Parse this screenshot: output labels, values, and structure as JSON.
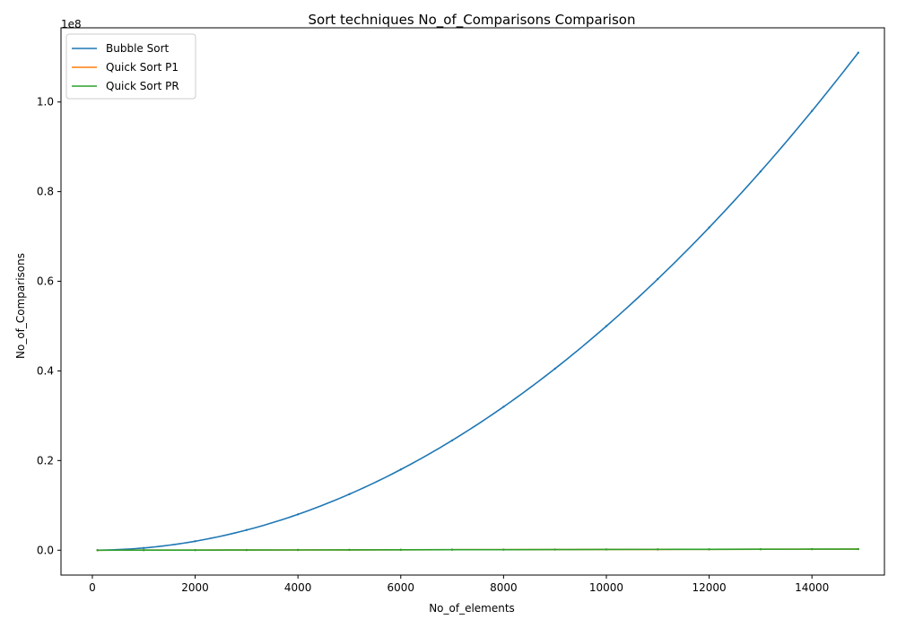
{
  "chart_data": {
    "type": "line",
    "title": "Sort techniques No_of_Comparisons Comparison",
    "xlabel": "No_of_elements",
    "ylabel": "No_of_Comparisons",
    "y_offset_label": "1e8",
    "xlim": [
      -610,
      15410
    ],
    "ylim": [
      -5550000,
      116550000
    ],
    "x_ticks": [
      0,
      2000,
      4000,
      6000,
      8000,
      10000,
      12000,
      14000
    ],
    "x_tick_labels": [
      "0",
      "2000",
      "4000",
      "6000",
      "8000",
      "10000",
      "12000",
      "14000"
    ],
    "y_ticks": [
      0,
      20000000,
      40000000,
      60000000,
      80000000,
      100000000
    ],
    "y_tick_labels": [
      "0.0",
      "0.2",
      "0.4",
      "0.6",
      "0.8",
      "1.0"
    ],
    "grid": false,
    "legend_position": "top-left",
    "series": [
      {
        "name": "Bubble Sort",
        "color": "#1f77b4",
        "x": [
          100,
          1000,
          2000,
          3000,
          4000,
          5000,
          6000,
          7000,
          8000,
          9000,
          10000,
          11000,
          12000,
          13000,
          14000,
          14900
        ],
        "y": [
          4950,
          499500,
          1999000,
          4498500,
          7998000,
          12497500,
          17997000,
          24496500,
          31996000,
          40495500,
          49995000,
          60494500,
          71994000,
          84493500,
          97993000,
          110997050
        ]
      },
      {
        "name": "Quick Sort P1",
        "color": "#ff7f0e",
        "x": [
          100,
          1000,
          2000,
          3000,
          4000,
          5000,
          6000,
          7000,
          8000,
          9000,
          10000,
          11000,
          12000,
          13000,
          14000,
          14900
        ],
        "y": [
          700,
          11000,
          25000,
          40000,
          56000,
          72000,
          89000,
          106000,
          123000,
          140000,
          158000,
          176000,
          194000,
          212000,
          230000,
          247000
        ]
      },
      {
        "name": "Quick Sort PR",
        "color": "#2ca02c",
        "x": [
          100,
          1000,
          2000,
          3000,
          4000,
          5000,
          6000,
          7000,
          8000,
          9000,
          10000,
          11000,
          12000,
          13000,
          14000,
          14900
        ],
        "y": [
          750,
          11500,
          26000,
          41000,
          57500,
          74000,
          91000,
          108500,
          126000,
          143500,
          161500,
          179500,
          197500,
          215500,
          234000,
          251000
        ]
      }
    ]
  }
}
